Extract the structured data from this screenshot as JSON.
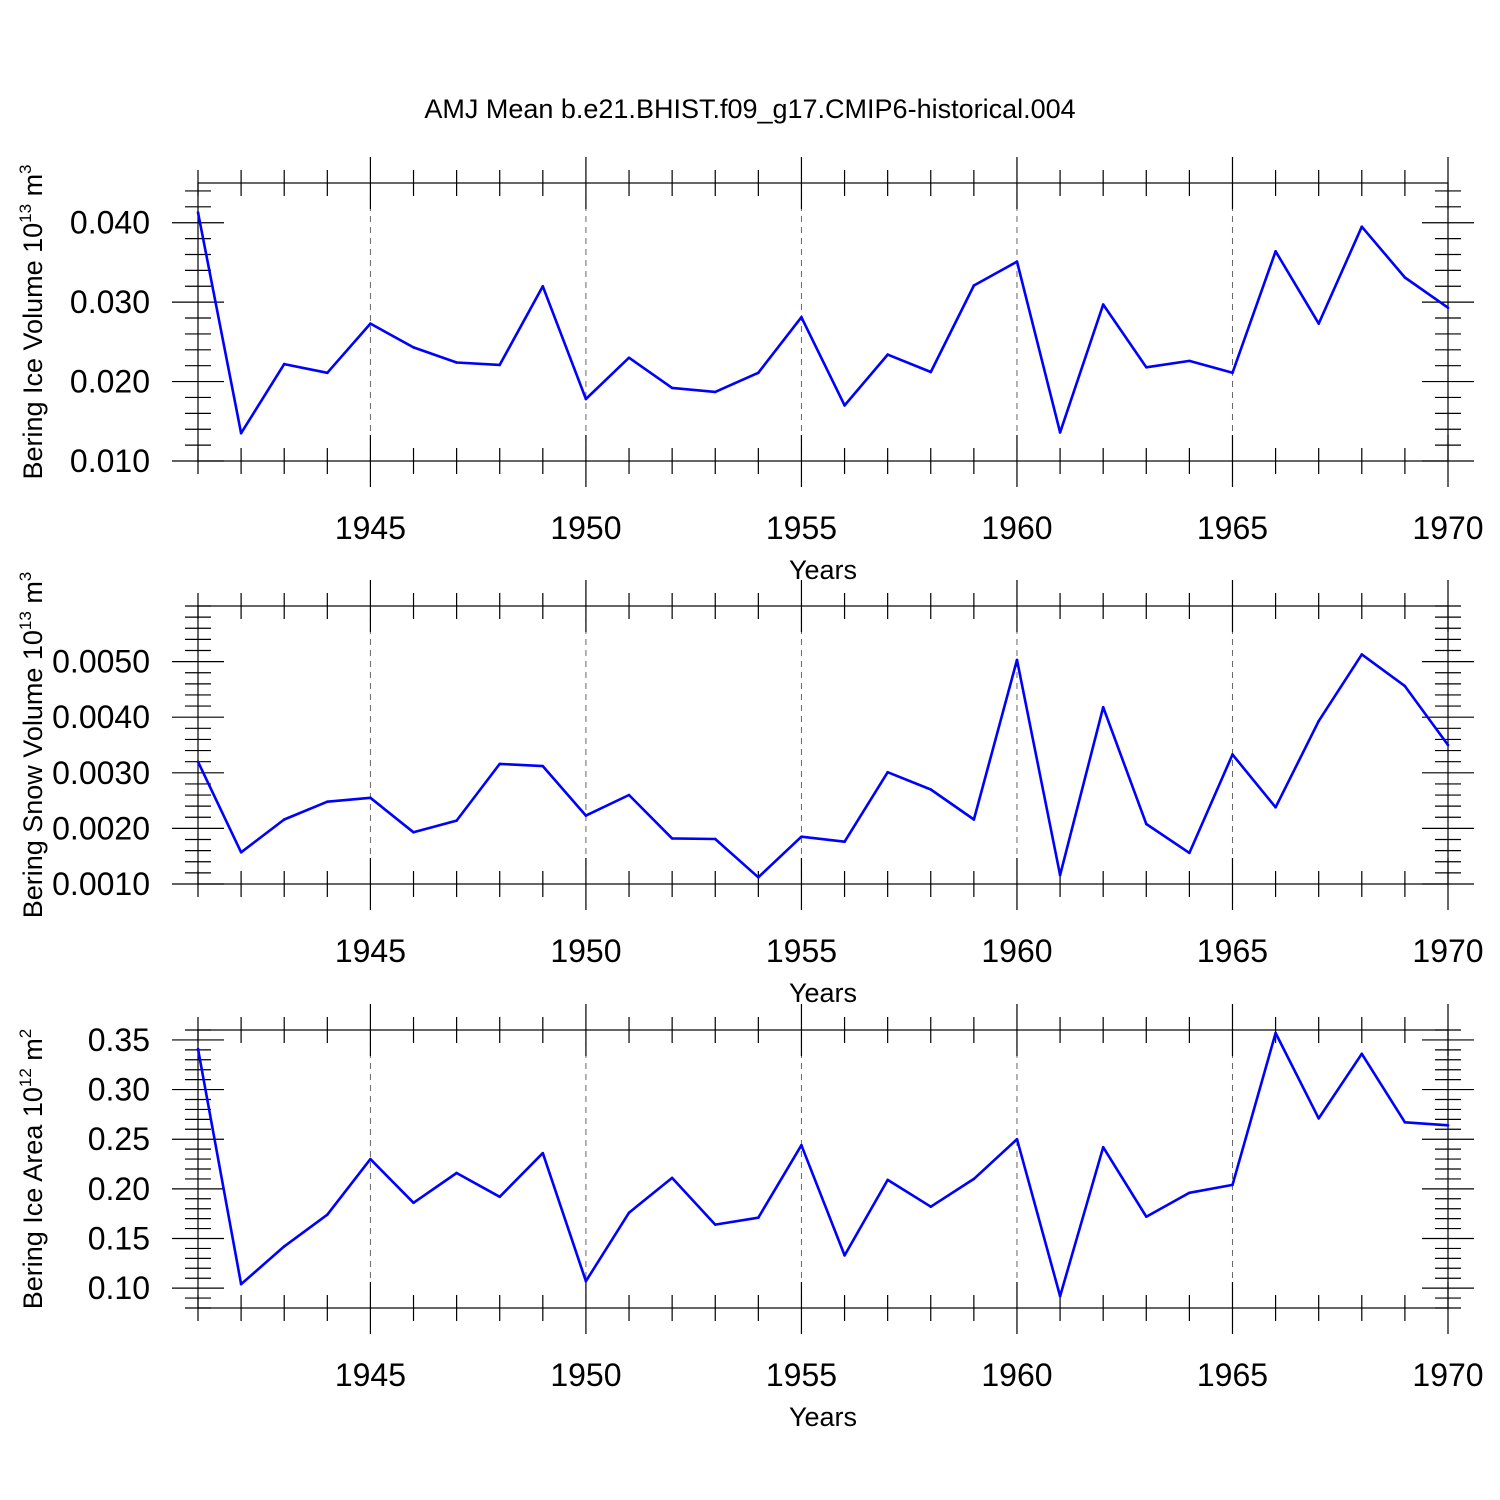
{
  "figure": {
    "title": "AMJ Mean b.e21.BHIST.f09_g17.CMIP6-historical.004"
  },
  "chart_data": [
    {
      "type": "line",
      "name": "ice-volume",
      "ylabel_main": "Bering Ice Volume 10",
      "ylabel_exp": "13",
      "ylabel_unit": " m",
      "ylabel_unit_exp": "3",
      "xlabel": "Years",
      "xlim": [
        1941,
        1970
      ],
      "ylim": [
        0.01,
        0.045
      ],
      "yticks": [
        0.01,
        0.02,
        0.03,
        0.04
      ],
      "ytick_labels": [
        "0.010",
        "0.020",
        "0.030",
        "0.040"
      ],
      "yminor_step": 0.002,
      "xticks": [
        1945,
        1950,
        1955,
        1960,
        1965,
        1970
      ],
      "xtick_labels": [
        "1945",
        "1950",
        "1955",
        "1960",
        "1965",
        "1970"
      ],
      "grid_x": [
        1945,
        1950,
        1955,
        1960,
        1965
      ],
      "series": [
        {
          "name": "Bering Ice Volume",
          "color": "#0000ff",
          "x": [
            1941,
            1942,
            1943,
            1944,
            1945,
            1946,
            1947,
            1948,
            1949,
            1950,
            1951,
            1952,
            1953,
            1954,
            1955,
            1956,
            1957,
            1958,
            1959,
            1960,
            1961,
            1962,
            1963,
            1964,
            1965,
            1966,
            1967,
            1968,
            1969,
            1970
          ],
          "values": [
            0.0413,
            0.0135,
            0.0222,
            0.0211,
            0.0273,
            0.0243,
            0.0224,
            0.0221,
            0.032,
            0.0178,
            0.023,
            0.0192,
            0.0187,
            0.0211,
            0.0281,
            0.017,
            0.0234,
            0.0212,
            0.0321,
            0.0351,
            0.0136,
            0.0297,
            0.0218,
            0.0226,
            0.0211,
            0.0364,
            0.0273,
            0.0395,
            0.0331,
            0.0293
          ]
        }
      ]
    },
    {
      "type": "line",
      "name": "snow-volume",
      "ylabel_main": "Bering Snow Volume 10",
      "ylabel_exp": "13",
      "ylabel_unit": " m",
      "ylabel_unit_exp": "3",
      "xlabel": "Years",
      "xlim": [
        1941,
        1970
      ],
      "ylim": [
        0.001,
        0.006
      ],
      "yticks": [
        0.001,
        0.002,
        0.003,
        0.004,
        0.005
      ],
      "ytick_labels": [
        "0.0010",
        "0.0020",
        "0.0030",
        "0.0040",
        "0.0050"
      ],
      "yminor_step": 0.0002,
      "xticks": [
        1945,
        1950,
        1955,
        1960,
        1965,
        1970
      ],
      "xtick_labels": [
        "1945",
        "1950",
        "1955",
        "1960",
        "1965",
        "1970"
      ],
      "grid_x": [
        1945,
        1950,
        1955,
        1960,
        1965
      ],
      "series": [
        {
          "name": "Bering Snow Volume",
          "color": "#0000ff",
          "x": [
            1941,
            1942,
            1943,
            1944,
            1945,
            1946,
            1947,
            1948,
            1949,
            1950,
            1951,
            1952,
            1953,
            1954,
            1955,
            1956,
            1957,
            1958,
            1959,
            1960,
            1961,
            1962,
            1963,
            1964,
            1965,
            1966,
            1967,
            1968,
            1969,
            1970
          ],
          "values": [
            0.0032,
            0.00157,
            0.00216,
            0.00248,
            0.00255,
            0.00193,
            0.00214,
            0.00316,
            0.00312,
            0.00223,
            0.0026,
            0.00182,
            0.00181,
            0.00112,
            0.00185,
            0.00176,
            0.00301,
            0.0027,
            0.00216,
            0.00503,
            0.00116,
            0.00418,
            0.00208,
            0.00156,
            0.00333,
            0.00238,
            0.00393,
            0.00513,
            0.00456,
            0.0035
          ]
        }
      ]
    },
    {
      "type": "line",
      "name": "ice-area",
      "ylabel_main": "Bering Ice Area 10",
      "ylabel_exp": "12",
      "ylabel_unit": " m",
      "ylabel_unit_exp": "2",
      "xlabel": "Years",
      "xlim": [
        1941,
        1970
      ],
      "ylim": [
        0.08,
        0.36
      ],
      "yticks": [
        0.1,
        0.15,
        0.2,
        0.25,
        0.3,
        0.35
      ],
      "ytick_labels": [
        "0.10",
        "0.15",
        "0.20",
        "0.25",
        "0.30",
        "0.35"
      ],
      "yminor_step": 0.01,
      "xticks": [
        1945,
        1950,
        1955,
        1960,
        1965,
        1970
      ],
      "xtick_labels": [
        "1945",
        "1950",
        "1955",
        "1960",
        "1965",
        "1970"
      ],
      "grid_x": [
        1945,
        1950,
        1955,
        1960,
        1965
      ],
      "series": [
        {
          "name": "Bering Ice Area",
          "color": "#0000ff",
          "x": [
            1941,
            1942,
            1943,
            1944,
            1945,
            1946,
            1947,
            1948,
            1949,
            1950,
            1951,
            1952,
            1953,
            1954,
            1955,
            1956,
            1957,
            1958,
            1959,
            1960,
            1961,
            1962,
            1963,
            1964,
            1965,
            1966,
            1967,
            1968,
            1969,
            1970
          ],
          "values": [
            0.341,
            0.104,
            0.142,
            0.174,
            0.23,
            0.186,
            0.216,
            0.192,
            0.236,
            0.107,
            0.176,
            0.211,
            0.164,
            0.171,
            0.244,
            0.133,
            0.209,
            0.182,
            0.21,
            0.25,
            0.092,
            0.242,
            0.172,
            0.196,
            0.204,
            0.357,
            0.271,
            0.336,
            0.267,
            0.264
          ]
        }
      ]
    }
  ]
}
